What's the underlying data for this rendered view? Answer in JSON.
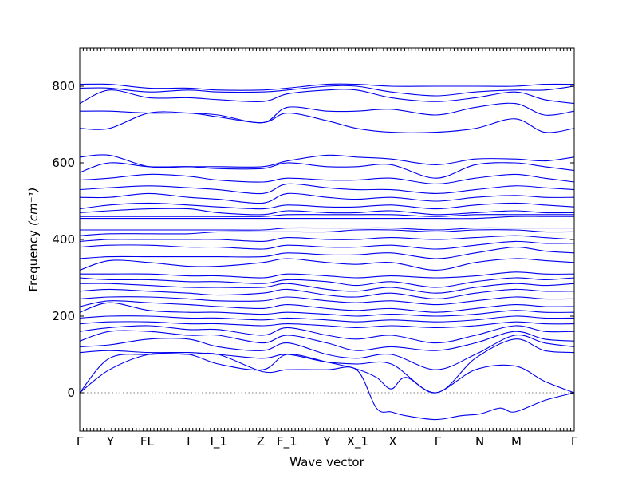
{
  "chart_data": {
    "type": "line",
    "xlabel": "Wave vector",
    "ylabel": "Frequency",
    "ylabel_unit": "(cm⁻¹)",
    "ylim": [
      -100,
      900
    ],
    "yticks": [
      0,
      200,
      400,
      600,
      800
    ],
    "grid": false,
    "legend": "none",
    "zero_reference_line": 0,
    "color": "#0000ee",
    "xlim": [
      0,
      1
    ],
    "x_labels": [
      {
        "label": "Γ",
        "pos": 0.0
      },
      {
        "label": "Y",
        "pos": 0.062
      },
      {
        "label": "FL",
        "pos": 0.136
      },
      {
        "label": "I",
        "pos": 0.22
      },
      {
        "label": "I_1",
        "pos": 0.281
      },
      {
        "label": "Z",
        "pos": 0.366
      },
      {
        "label": "F_1",
        "pos": 0.419
      },
      {
        "label": "Y",
        "pos": 0.5
      },
      {
        "label": "X_1",
        "pos": 0.562
      },
      {
        "label": "X",
        "pos": 0.633
      },
      {
        "label": "Γ",
        "pos": 0.724
      },
      {
        "label": "N",
        "pos": 0.809
      },
      {
        "label": "M",
        "pos": 0.883
      },
      {
        "label": "Γ",
        "pos": 1.0
      }
    ],
    "series": [
      {
        "x": [
          0,
          0.06,
          0.14,
          0.22,
          0.28,
          0.37,
          0.42,
          0.5,
          0.56,
          0.6,
          0.63,
          0.66,
          0.72,
          0.77,
          0.81,
          0.85,
          0.88,
          0.94,
          1.0
        ],
        "y": [
          0,
          60,
          100,
          100,
          100,
          55,
          60,
          60,
          60,
          -40,
          -50,
          -60,
          -70,
          -60,
          -55,
          -40,
          -50,
          -20,
          0
        ]
      },
      {
        "x": [
          0,
          0.06,
          0.14,
          0.22,
          0.28,
          0.37,
          0.42,
          0.5,
          0.56,
          0.6,
          0.63,
          0.66,
          0.72,
          0.8,
          0.88,
          0.94,
          1.0
        ],
        "y": [
          0,
          90,
          100,
          100,
          75,
          60,
          100,
          80,
          62,
          40,
          10,
          40,
          0,
          60,
          70,
          30,
          0
        ]
      },
      {
        "x": [
          0,
          0.06,
          0.14,
          0.22,
          0.28,
          0.37,
          0.42,
          0.5,
          0.56,
          0.63,
          0.72,
          0.8,
          0.88,
          0.94,
          1.0
        ],
        "y": [
          105,
          110,
          105,
          105,
          100,
          90,
          100,
          80,
          75,
          75,
          0,
          90,
          140,
          110,
          105
        ]
      },
      {
        "x": [
          0,
          0.06,
          0.14,
          0.22,
          0.28,
          0.37,
          0.42,
          0.5,
          0.56,
          0.63,
          0.72,
          0.8,
          0.88,
          0.94,
          1.0
        ],
        "y": [
          120,
          125,
          140,
          140,
          120,
          110,
          130,
          100,
          90,
          100,
          60,
          100,
          150,
          130,
          120
        ]
      },
      {
        "x": [
          0,
          0.06,
          0.14,
          0.22,
          0.28,
          0.37,
          0.42,
          0.5,
          0.56,
          0.63,
          0.72,
          0.8,
          0.88,
          0.94,
          1.0
        ],
        "y": [
          135,
          160,
          160,
          150,
          150,
          130,
          150,
          130,
          110,
          120,
          110,
          130,
          160,
          140,
          135
        ]
      },
      {
        "x": [
          0,
          0.06,
          0.14,
          0.22,
          0.28,
          0.37,
          0.42,
          0.5,
          0.56,
          0.63,
          0.72,
          0.8,
          0.88,
          0.94,
          1.0
        ],
        "y": [
          160,
          170,
          175,
          165,
          165,
          150,
          170,
          150,
          140,
          150,
          130,
          150,
          175,
          160,
          160
        ]
      },
      {
        "x": [
          0,
          0.06,
          0.14,
          0.22,
          0.28,
          0.37,
          0.42,
          0.5,
          0.56,
          0.63,
          0.72,
          0.8,
          0.88,
          0.94,
          1.0
        ],
        "y": [
          180,
          185,
          185,
          180,
          180,
          175,
          180,
          175,
          170,
          175,
          170,
          175,
          185,
          180,
          180
        ]
      },
      {
        "x": [
          0,
          0.06,
          0.14,
          0.22,
          0.28,
          0.37,
          0.42,
          0.5,
          0.56,
          0.63,
          0.72,
          0.8,
          0.88,
          0.94,
          1.0
        ],
        "y": [
          195,
          200,
          200,
          195,
          195,
          190,
          195,
          190,
          185,
          190,
          185,
          190,
          200,
          195,
          195
        ]
      },
      {
        "x": [
          0,
          0.06,
          0.14,
          0.22,
          0.28,
          0.37,
          0.42,
          0.5,
          0.56,
          0.63,
          0.72,
          0.8,
          0.88,
          0.94,
          1.0
        ],
        "y": [
          210,
          235,
          215,
          210,
          210,
          205,
          210,
          205,
          200,
          205,
          200,
          205,
          215,
          210,
          210
        ]
      },
      {
        "x": [
          0,
          0.06,
          0.14,
          0.22,
          0.28,
          0.37,
          0.42,
          0.5,
          0.56,
          0.63,
          0.72,
          0.8,
          0.88,
          0.94,
          1.0
        ],
        "y": [
          225,
          240,
          235,
          230,
          225,
          220,
          230,
          220,
          215,
          220,
          210,
          220,
          230,
          225,
          225
        ]
      },
      {
        "x": [
          0,
          0.06,
          0.14,
          0.22,
          0.28,
          0.37,
          0.42,
          0.5,
          0.56,
          0.63,
          0.72,
          0.8,
          0.88,
          0.94,
          1.0
        ],
        "y": [
          245,
          250,
          250,
          245,
          240,
          240,
          250,
          240,
          235,
          240,
          230,
          240,
          250,
          245,
          245
        ]
      },
      {
        "x": [
          0,
          0.06,
          0.14,
          0.22,
          0.28,
          0.37,
          0.42,
          0.5,
          0.56,
          0.63,
          0.72,
          0.8,
          0.88,
          0.94,
          1.0
        ],
        "y": [
          265,
          270,
          265,
          260,
          255,
          260,
          270,
          255,
          250,
          260,
          245,
          260,
          270,
          265,
          265
        ]
      },
      {
        "x": [
          0,
          0.06,
          0.14,
          0.22,
          0.28,
          0.37,
          0.42,
          0.5,
          0.56,
          0.63,
          0.72,
          0.8,
          0.88,
          0.94,
          1.0
        ],
        "y": [
          285,
          285,
          280,
          275,
          275,
          275,
          285,
          270,
          265,
          275,
          260,
          275,
          285,
          280,
          285
        ]
      },
      {
        "x": [
          0,
          0.06,
          0.14,
          0.22,
          0.28,
          0.37,
          0.42,
          0.5,
          0.56,
          0.63,
          0.72,
          0.8,
          0.88,
          0.94,
          1.0
        ],
        "y": [
          300,
          295,
          295,
          290,
          290,
          285,
          295,
          290,
          280,
          290,
          275,
          290,
          300,
          295,
          300
        ]
      },
      {
        "x": [
          0,
          0.06,
          0.14,
          0.22,
          0.28,
          0.37,
          0.42,
          0.5,
          0.56,
          0.63,
          0.72,
          0.8,
          0.88,
          0.94,
          1.0
        ],
        "y": [
          310,
          310,
          310,
          305,
          305,
          300,
          310,
          305,
          300,
          305,
          300,
          305,
          315,
          310,
          310
        ]
      },
      {
        "x": [
          0,
          0.06,
          0.14,
          0.22,
          0.28,
          0.37,
          0.42,
          0.5,
          0.56,
          0.63,
          0.72,
          0.8,
          0.88,
          0.94,
          1.0
        ],
        "y": [
          320,
          345,
          340,
          330,
          330,
          340,
          350,
          340,
          335,
          340,
          320,
          340,
          350,
          345,
          340
        ]
      },
      {
        "x": [
          0,
          0.06,
          0.14,
          0.22,
          0.28,
          0.37,
          0.42,
          0.5,
          0.56,
          0.63,
          0.72,
          0.8,
          0.88,
          0.94,
          1.0
        ],
        "y": [
          350,
          355,
          355,
          355,
          355,
          355,
          365,
          360,
          360,
          365,
          350,
          365,
          380,
          370,
          365
        ]
      },
      {
        "x": [
          0,
          0.06,
          0.14,
          0.22,
          0.28,
          0.37,
          0.42,
          0.5,
          0.56,
          0.63,
          0.72,
          0.8,
          0.88,
          0.94,
          1.0
        ],
        "y": [
          380,
          385,
          385,
          380,
          380,
          375,
          385,
          380,
          380,
          385,
          375,
          385,
          395,
          390,
          390
        ]
      },
      {
        "x": [
          0,
          0.06,
          0.14,
          0.22,
          0.28,
          0.37,
          0.42,
          0.5,
          0.56,
          0.63,
          0.72,
          0.8,
          0.88,
          0.94,
          1.0
        ],
        "y": [
          395,
          400,
          400,
          400,
          400,
          395,
          405,
          400,
          400,
          405,
          400,
          405,
          410,
          405,
          400
        ]
      },
      {
        "x": [
          0,
          0.06,
          0.14,
          0.22,
          0.28,
          0.37,
          0.42,
          0.5,
          0.56,
          0.63,
          0.72,
          0.8,
          0.88,
          0.94,
          1.0
        ],
        "y": [
          410,
          415,
          415,
          415,
          420,
          420,
          420,
          420,
          425,
          425,
          420,
          425,
          425,
          420,
          420
        ]
      },
      {
        "x": [
          0,
          0.06,
          0.14,
          0.22,
          0.28,
          0.37,
          0.42,
          0.5,
          0.56,
          0.63,
          0.72,
          0.8,
          0.88,
          0.94,
          1.0
        ],
        "y": [
          425,
          425,
          425,
          425,
          425,
          425,
          430,
          430,
          430,
          430,
          425,
          430,
          430,
          430,
          430
        ]
      },
      {
        "x": [
          0,
          0.06,
          0.14,
          0.22,
          0.28,
          0.37,
          0.42,
          0.5,
          0.56,
          0.63,
          0.72,
          0.8,
          0.88,
          0.94,
          1.0
        ],
        "y": [
          455,
          455,
          455,
          455,
          455,
          455,
          455,
          455,
          455,
          455,
          455,
          455,
          460,
          460,
          460
        ]
      },
      {
        "x": [
          0,
          0.06,
          0.14,
          0.22,
          0.28,
          0.37,
          0.42,
          0.5,
          0.56,
          0.63,
          0.72,
          0.8,
          0.88,
          0.94,
          1.0
        ],
        "y": [
          460,
          460,
          460,
          460,
          460,
          460,
          465,
          465,
          465,
          465,
          460,
          465,
          465,
          465,
          465
        ]
      },
      {
        "x": [
          0,
          0.06,
          0.14,
          0.22,
          0.28,
          0.37,
          0.42,
          0.5,
          0.56,
          0.63,
          0.72,
          0.8,
          0.88,
          0.94,
          1.0
        ],
        "y": [
          470,
          475,
          480,
          480,
          470,
          465,
          475,
          470,
          470,
          475,
          465,
          470,
          475,
          470,
          470
        ]
      },
      {
        "x": [
          0,
          0.06,
          0.14,
          0.22,
          0.28,
          0.37,
          0.42,
          0.5,
          0.56,
          0.63,
          0.72,
          0.8,
          0.88,
          0.94,
          1.0
        ],
        "y": [
          480,
          490,
          495,
          490,
          485,
          480,
          490,
          485,
          485,
          490,
          480,
          490,
          495,
          490,
          485
        ]
      },
      {
        "x": [
          0,
          0.06,
          0.14,
          0.22,
          0.28,
          0.37,
          0.42,
          0.5,
          0.56,
          0.63,
          0.72,
          0.8,
          0.88,
          0.94,
          1.0
        ],
        "y": [
          510,
          510,
          520,
          510,
          505,
          495,
          520,
          510,
          505,
          510,
          500,
          510,
          515,
          510,
          510
        ]
      },
      {
        "x": [
          0,
          0.06,
          0.14,
          0.22,
          0.28,
          0.37,
          0.42,
          0.5,
          0.56,
          0.63,
          0.72,
          0.8,
          0.88,
          0.94,
          1.0
        ],
        "y": [
          530,
          535,
          540,
          535,
          530,
          520,
          545,
          535,
          530,
          530,
          520,
          530,
          540,
          535,
          530
        ]
      },
      {
        "x": [
          0,
          0.06,
          0.14,
          0.22,
          0.28,
          0.37,
          0.42,
          0.5,
          0.56,
          0.63,
          0.72,
          0.8,
          0.88,
          0.94,
          1.0
        ],
        "y": [
          555,
          560,
          570,
          565,
          555,
          550,
          560,
          555,
          555,
          560,
          545,
          560,
          570,
          560,
          550
        ]
      },
      {
        "x": [
          0,
          0.06,
          0.14,
          0.22,
          0.28,
          0.37,
          0.42,
          0.5,
          0.56,
          0.63,
          0.72,
          0.8,
          0.88,
          0.94,
          1.0
        ],
        "y": [
          575,
          600,
          590,
          590,
          585,
          585,
          600,
          590,
          590,
          595,
          560,
          595,
          600,
          590,
          580
        ]
      },
      {
        "x": [
          0,
          0.06,
          0.14,
          0.22,
          0.28,
          0.37,
          0.42,
          0.5,
          0.56,
          0.63,
          0.72,
          0.8,
          0.88,
          0.94,
          1.0
        ],
        "y": [
          615,
          620,
          590,
          590,
          590,
          590,
          605,
          620,
          615,
          610,
          595,
          610,
          610,
          605,
          615
        ]
      },
      {
        "x": [
          0,
          0.06,
          0.14,
          0.22,
          0.28,
          0.37,
          0.42,
          0.5,
          0.56,
          0.63,
          0.72,
          0.8,
          0.88,
          0.94,
          1.0
        ],
        "y": [
          690,
          690,
          730,
          730,
          720,
          705,
          730,
          710,
          690,
          680,
          680,
          690,
          715,
          680,
          690
        ]
      },
      {
        "x": [
          0,
          0.06,
          0.14,
          0.22,
          0.28,
          0.37,
          0.42,
          0.5,
          0.56,
          0.63,
          0.72,
          0.8,
          0.88,
          0.94,
          1.0
        ],
        "y": [
          735,
          735,
          730,
          730,
          725,
          705,
          745,
          735,
          735,
          740,
          725,
          745,
          755,
          725,
          735
        ]
      },
      {
        "x": [
          0,
          0.06,
          0.14,
          0.22,
          0.28,
          0.37,
          0.42,
          0.5,
          0.56,
          0.63,
          0.72,
          0.8,
          0.88,
          0.94,
          1.0
        ],
        "y": [
          755,
          790,
          770,
          770,
          765,
          760,
          780,
          790,
          790,
          770,
          760,
          770,
          785,
          765,
          755
        ]
      },
      {
        "x": [
          0,
          0.06,
          0.14,
          0.22,
          0.28,
          0.37,
          0.42,
          0.5,
          0.56,
          0.63,
          0.72,
          0.8,
          0.88,
          0.94,
          1.0
        ],
        "y": [
          795,
          795,
          785,
          790,
          785,
          785,
          790,
          800,
          800,
          785,
          775,
          785,
          790,
          790,
          800
        ]
      },
      {
        "x": [
          0,
          0.06,
          0.14,
          0.22,
          0.28,
          0.37,
          0.42,
          0.5,
          0.56,
          0.63,
          0.72,
          0.8,
          0.88,
          0.94,
          1.0
        ],
        "y": [
          805,
          805,
          795,
          795,
          790,
          790,
          795,
          805,
          805,
          800,
          800,
          800,
          800,
          805,
          805
        ]
      }
    ]
  }
}
